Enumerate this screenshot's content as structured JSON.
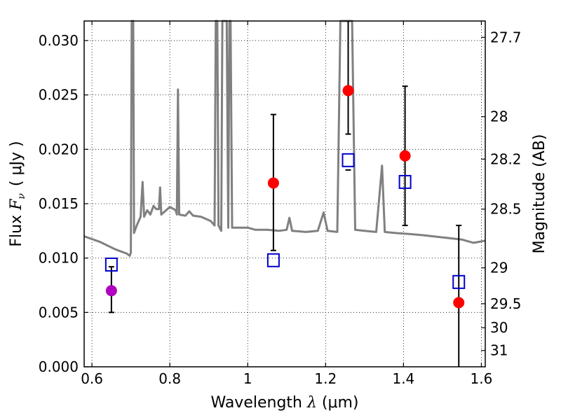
{
  "chart_data": {
    "type": "scatter",
    "title": "",
    "xlabel": {
      "prefix": "Wavelength ",
      "symbol": "λ",
      "unit": " (μm)"
    },
    "ylabel": {
      "prefix": "Flux ",
      "symbol": "F",
      "subscript": "ν",
      "unit": "( μJy )"
    },
    "y2label": "Magnitude (AB)",
    "xlim": [
      0.58,
      1.61
    ],
    "ylim": [
      0.0,
      0.0318
    ],
    "grid": true,
    "x_ticks": [
      {
        "value": 0.6,
        "label": "0.6"
      },
      {
        "value": 0.8,
        "label": "0.8"
      },
      {
        "value": 1.0,
        "label": "1"
      },
      {
        "value": 1.2,
        "label": "1.2"
      },
      {
        "value": 1.4,
        "label": "1.4"
      },
      {
        "value": 1.6,
        "label": "1.6"
      }
    ],
    "y_ticks": [
      {
        "value": 0.0,
        "label": "0.000"
      },
      {
        "value": 0.005,
        "label": "0.005"
      },
      {
        "value": 0.01,
        "label": "0.010"
      },
      {
        "value": 0.015,
        "label": "0.015"
      },
      {
        "value": 0.02,
        "label": "0.020"
      },
      {
        "value": 0.025,
        "label": "0.025"
      },
      {
        "value": 0.03,
        "label": "0.030"
      }
    ],
    "y2_ticks": [
      {
        "flux": 0.0303,
        "label": "27.7"
      },
      {
        "flux": 0.023,
        "label": "28"
      },
      {
        "flux": 0.0191,
        "label": "28.2"
      },
      {
        "flux": 0.0145,
        "label": "28.5"
      },
      {
        "flux": 0.0091,
        "label": "29"
      },
      {
        "flux": 0.0058,
        "label": "29.5"
      },
      {
        "flux": 0.0036,
        "label": "30"
      },
      {
        "flux": 0.0015,
        "label": "31"
      }
    ],
    "colors": {
      "spectrum": "#808080",
      "observed": "#ff0000",
      "observed_alt": "#b000c0",
      "model": "#0000cc",
      "errorbar": "#000000"
    },
    "spectrum": [
      [
        0.58,
        0.012
      ],
      [
        0.62,
        0.0115
      ],
      [
        0.66,
        0.0108
      ],
      [
        0.69,
        0.0104
      ],
      [
        0.697,
        0.0102
      ],
      [
        0.7,
        0.0105
      ],
      [
        0.702,
        0.032
      ],
      [
        0.706,
        0.032
      ],
      [
        0.708,
        0.0123
      ],
      [
        0.715,
        0.013
      ],
      [
        0.725,
        0.0138
      ],
      [
        0.73,
        0.017
      ],
      [
        0.734,
        0.0138
      ],
      [
        0.742,
        0.0144
      ],
      [
        0.75,
        0.014
      ],
      [
        0.758,
        0.0148
      ],
      [
        0.765,
        0.0145
      ],
      [
        0.772,
        0.0145
      ],
      [
        0.775,
        0.0165
      ],
      [
        0.778,
        0.014
      ],
      [
        0.8,
        0.0147
      ],
      [
        0.815,
        0.0144
      ],
      [
        0.818,
        0.014
      ],
      [
        0.821,
        0.0255
      ],
      [
        0.824,
        0.014
      ],
      [
        0.84,
        0.0139
      ],
      [
        0.85,
        0.0143
      ],
      [
        0.86,
        0.0139
      ],
      [
        0.88,
        0.0138
      ],
      [
        0.905,
        0.0134
      ],
      [
        0.915,
        0.013
      ],
      [
        0.918,
        0.032
      ],
      [
        0.922,
        0.032
      ],
      [
        0.925,
        0.013
      ],
      [
        0.932,
        0.0125
      ],
      [
        0.935,
        0.032
      ],
      [
        0.946,
        0.032
      ],
      [
        0.95,
        0.0128
      ],
      [
        0.953,
        0.032
      ],
      [
        0.956,
        0.032
      ],
      [
        0.96,
        0.0128
      ],
      [
        0.98,
        0.0128
      ],
      [
        1.0,
        0.0128
      ],
      [
        1.02,
        0.0126
      ],
      [
        1.05,
        0.0126
      ],
      [
        1.08,
        0.0125
      ],
      [
        1.1,
        0.0126
      ],
      [
        1.107,
        0.0137
      ],
      [
        1.114,
        0.0125
      ],
      [
        1.15,
        0.0124
      ],
      [
        1.18,
        0.0125
      ],
      [
        1.195,
        0.0142
      ],
      [
        1.205,
        0.0125
      ],
      [
        1.23,
        0.0124
      ],
      [
        1.238,
        0.032
      ],
      [
        1.268,
        0.032
      ],
      [
        1.276,
        0.0126
      ],
      [
        1.3,
        0.0125
      ],
      [
        1.33,
        0.0124
      ],
      [
        1.345,
        0.0185
      ],
      [
        1.352,
        0.0124
      ],
      [
        1.38,
        0.0123
      ],
      [
        1.42,
        0.0122
      ],
      [
        1.45,
        0.0121
      ],
      [
        1.5,
        0.0119
      ],
      [
        1.55,
        0.0117
      ],
      [
        1.58,
        0.0114
      ],
      [
        1.595,
        0.0115
      ],
      [
        1.61,
        0.0116
      ]
    ],
    "observed": [
      {
        "x": 0.65,
        "y": 0.007,
        "yerr_low": 0.005,
        "yerr_high": 0.0092,
        "color": "observed_alt"
      },
      {
        "x": 1.066,
        "y": 0.0169,
        "yerr_low": 0.0107,
        "yerr_high": 0.0232,
        "color": "observed"
      },
      {
        "x": 1.258,
        "y": 0.0254,
        "yerr_low": 0.0214,
        "yerr_high": 0.0318,
        "color": "observed"
      },
      {
        "x": 1.404,
        "y": 0.0194,
        "yerr_low": 0.013,
        "yerr_high": 0.0258,
        "color": "observed"
      },
      {
        "x": 1.542,
        "y": 0.0059,
        "yerr_low": 0.0,
        "yerr_high": 0.013,
        "color": "observed"
      }
    ],
    "model": [
      {
        "x": 0.65,
        "y": 0.0094
      },
      {
        "x": 1.066,
        "y": 0.0098
      },
      {
        "x": 1.258,
        "y": 0.019
      },
      {
        "x": 1.404,
        "y": 0.017
      },
      {
        "x": 1.542,
        "y": 0.0078
      }
    ],
    "model_errorbar_caps": [
      {
        "x": 1.258,
        "y": 0.0181
      }
    ]
  }
}
